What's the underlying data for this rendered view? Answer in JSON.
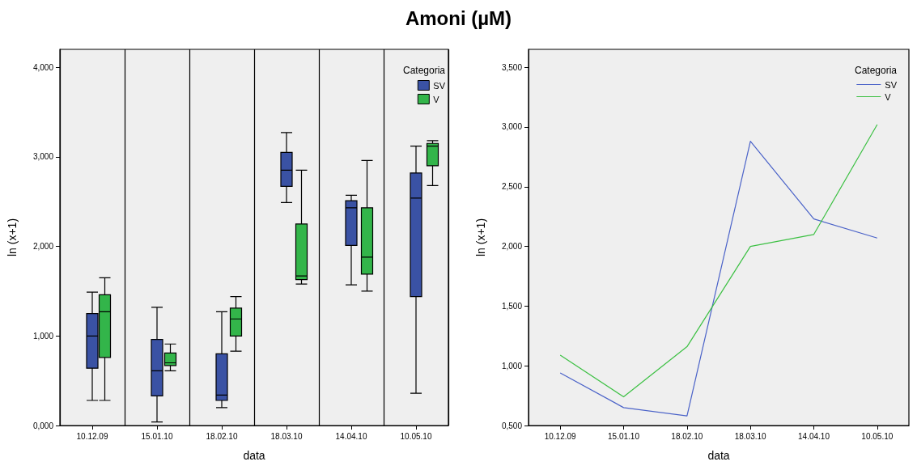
{
  "chart_data": [
    {
      "type": "box",
      "title": "Amoni (µM)",
      "xlabel": "data",
      "ylabel": "ln (x+1)",
      "legend_title": "Categoria",
      "legend": "top right",
      "grid": "x",
      "categories": [
        "10.12.09",
        "15.01.10",
        "18.02.10",
        "18.03.10",
        "14.04.10",
        "10.05.10"
      ],
      "ylim": [
        0,
        4.2
      ],
      "yticks": [
        {
          "value": 0,
          "label": "0,000"
        },
        {
          "value": 1,
          "label": "1,000"
        },
        {
          "value": 2,
          "label": "2,000"
        },
        {
          "value": 3,
          "label": "3,000"
        },
        {
          "value": 4,
          "label": "4,000"
        }
      ],
      "series": [
        {
          "name": "SV",
          "color": "#3a52a4",
          "boxes": [
            {
              "low": 0.28,
              "q1": 0.64,
              "median": 1.0,
              "q3": 1.25,
              "high": 1.49
            },
            {
              "low": 0.04,
              "q1": 0.33,
              "median": 0.61,
              "q3": 0.96,
              "high": 1.32
            },
            {
              "low": 0.2,
              "q1": 0.28,
              "median": 0.34,
              "q3": 0.8,
              "high": 1.27
            },
            {
              "low": 2.49,
              "q1": 2.67,
              "median": 2.85,
              "q3": 3.05,
              "high": 3.27
            },
            {
              "low": 1.57,
              "q1": 2.01,
              "median": 2.43,
              "q3": 2.51,
              "high": 2.57
            },
            {
              "low": 0.36,
              "q1": 1.44,
              "median": 2.54,
              "q3": 2.82,
              "high": 3.12
            }
          ]
        },
        {
          "name": "V",
          "color": "#33b54a",
          "boxes": [
            {
              "low": 0.28,
              "q1": 0.76,
              "median": 1.27,
              "q3": 1.46,
              "high": 1.65
            },
            {
              "low": 0.61,
              "q1": 0.67,
              "median": 0.7,
              "q3": 0.81,
              "high": 0.91
            },
            {
              "low": 0.83,
              "q1": 1.0,
              "median": 1.19,
              "q3": 1.31,
              "high": 1.44
            },
            {
              "low": 1.58,
              "q1": 1.63,
              "median": 1.67,
              "q3": 2.25,
              "high": 2.85
            },
            {
              "low": 1.5,
              "q1": 1.69,
              "median": 1.88,
              "q3": 2.43,
              "high": 2.96
            },
            {
              "low": 2.68,
              "q1": 2.9,
              "median": 3.12,
              "q3": 3.15,
              "high": 3.18
            }
          ]
        }
      ]
    },
    {
      "type": "line",
      "xlabel": "data",
      "ylabel": "ln (x+1)",
      "legend_title": "Categoria",
      "legend": "top right",
      "grid": false,
      "categories": [
        "10.12.09",
        "15.01.10",
        "18.02.10",
        "18.03.10",
        "14.04.10",
        "10.05.10"
      ],
      "ylim": [
        0.5,
        3.65
      ],
      "yticks": [
        {
          "value": 0.5,
          "label": "0,500"
        },
        {
          "value": 1,
          "label": "1,000"
        },
        {
          "value": 1.5,
          "label": "1,500"
        },
        {
          "value": 2,
          "label": "2,000"
        },
        {
          "value": 2.5,
          "label": "2,500"
        },
        {
          "value": 3,
          "label": "3,000"
        },
        {
          "value": 3.5,
          "label": "3,500"
        }
      ],
      "series": [
        {
          "name": "SV",
          "color": "#4a62c8",
          "values": [
            0.94,
            0.65,
            0.58,
            2.88,
            2.23,
            2.07
          ]
        },
        {
          "name": "V",
          "color": "#3cc043",
          "values": [
            1.09,
            0.74,
            1.16,
            2.0,
            2.1,
            3.02
          ]
        }
      ]
    }
  ]
}
